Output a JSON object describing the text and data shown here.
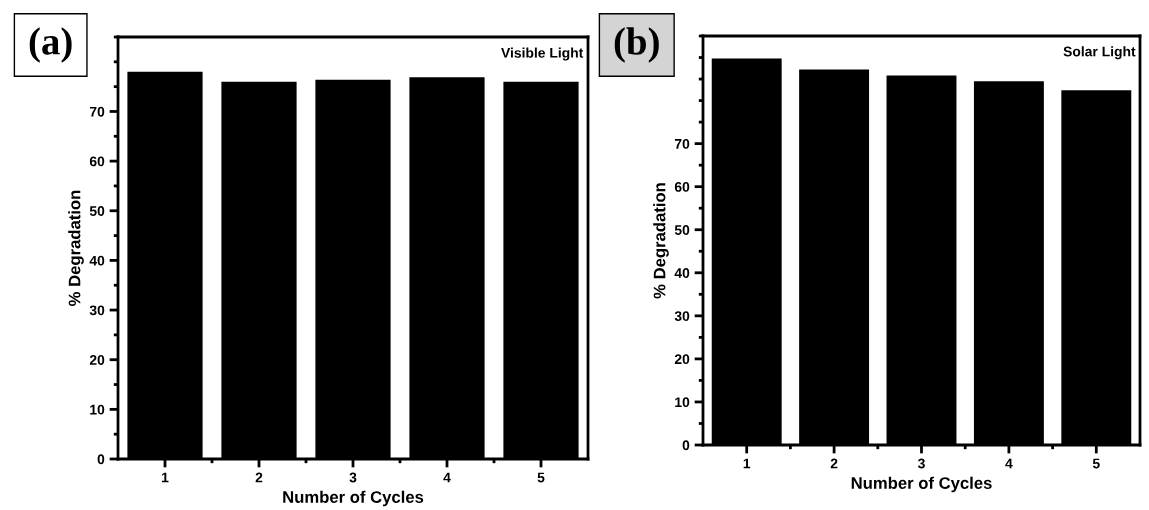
{
  "chart_data": [
    {
      "type": "bar",
      "xlabel": "Number of Cycles",
      "ylabel": "% Degradation",
      "annotations": [
        "(a)",
        "Visible Light"
      ],
      "categories": [
        "1",
        "2",
        "3",
        "4",
        "5"
      ],
      "values": [
        78,
        76,
        76.4,
        76.9,
        76
      ],
      "color": "#000000",
      "ylim": [
        0,
        85
      ],
      "yticks": [
        0,
        10,
        20,
        30,
        40,
        50,
        60,
        70
      ],
      "grid": false,
      "legend": false
    },
    {
      "type": "bar",
      "xlabel": "Number of Cycles",
      "ylabel": "% Degradation",
      "annotations": [
        "(b)",
        "Solar Light"
      ],
      "categories": [
        "1",
        "2",
        "3",
        "4",
        "5"
      ],
      "values": [
        89.8,
        87.2,
        85.8,
        84.5,
        82.4
      ],
      "color": "#000000",
      "ylim": [
        0,
        95
      ],
      "yticks": [
        0,
        10,
        20,
        30,
        40,
        50,
        60,
        70
      ],
      "grid": false,
      "legend": false
    }
  ]
}
